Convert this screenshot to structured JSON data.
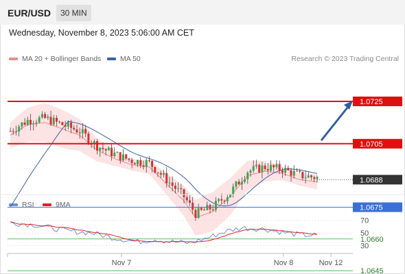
{
  "header": {
    "symbol": "EUR/USD",
    "timeframe": "30 MIN"
  },
  "date_text": "Wednesday, November 8, 2023 5:06:00 AM CET",
  "credit": "Research © 2023 Trading Central",
  "colors": {
    "bollinger": "#f08a8a",
    "ma50": "#3b5fa8",
    "rsi": "#6a8ed8",
    "rsi_ma": "#e02020",
    "resistance": "#e01010",
    "pivot": "#3b6fd8",
    "support": "#5db85d",
    "arrow": "#2f5fa0",
    "last": "#333333"
  },
  "chart_data": [
    {
      "type": "candlestick",
      "legend": [
        "MA 20 + Bollinger Bands",
        "MA 50"
      ],
      "x_labels": [
        "Nov 7",
        "Nov 8",
        "Nov 12"
      ],
      "ylim": [
        1.0635,
        1.0745
      ],
      "last_price": "1.0688",
      "levels": [
        {
          "value": "1.0725",
          "kind": "resistance"
        },
        {
          "value": "1.0705",
          "kind": "resistance"
        },
        {
          "value": "1.0675",
          "kind": "pivot"
        },
        {
          "value": "1.0660",
          "kind": "support"
        },
        {
          "value": "1.0645",
          "kind": "support"
        }
      ],
      "anchors": [
        [
          0,
          1.0711
        ],
        [
          6,
          1.0716
        ],
        [
          12,
          1.0717
        ],
        [
          18,
          1.0714
        ],
        [
          24,
          1.0711
        ],
        [
          30,
          1.0704
        ],
        [
          36,
          1.07
        ],
        [
          42,
          1.0697
        ],
        [
          48,
          1.0696
        ],
        [
          54,
          1.0688
        ],
        [
          60,
          1.068
        ],
        [
          64,
          1.0672
        ],
        [
          70,
          1.0675
        ],
        [
          76,
          1.0682
        ],
        [
          82,
          1.0692
        ],
        [
          88,
          1.0694
        ],
        [
          94,
          1.0693
        ],
        [
          100,
          1.069
        ],
        [
          106,
          1.0689
        ]
      ],
      "bb_width": 0.0008
    },
    {
      "type": "line",
      "legend": [
        "RSI",
        "9MA"
      ],
      "y_ticks": [
        70,
        50,
        30
      ],
      "ylim": [
        20,
        80
      ],
      "rsi_anchors": [
        [
          0,
          66
        ],
        [
          8,
          63
        ],
        [
          14,
          58
        ],
        [
          20,
          53
        ],
        [
          28,
          50
        ],
        [
          36,
          42
        ],
        [
          44,
          36
        ],
        [
          50,
          40
        ],
        [
          56,
          36
        ],
        [
          62,
          34
        ],
        [
          68,
          42
        ],
        [
          74,
          52
        ],
        [
          80,
          58
        ],
        [
          88,
          56
        ],
        [
          94,
          51
        ],
        [
          100,
          47
        ],
        [
          106,
          46
        ]
      ]
    }
  ]
}
